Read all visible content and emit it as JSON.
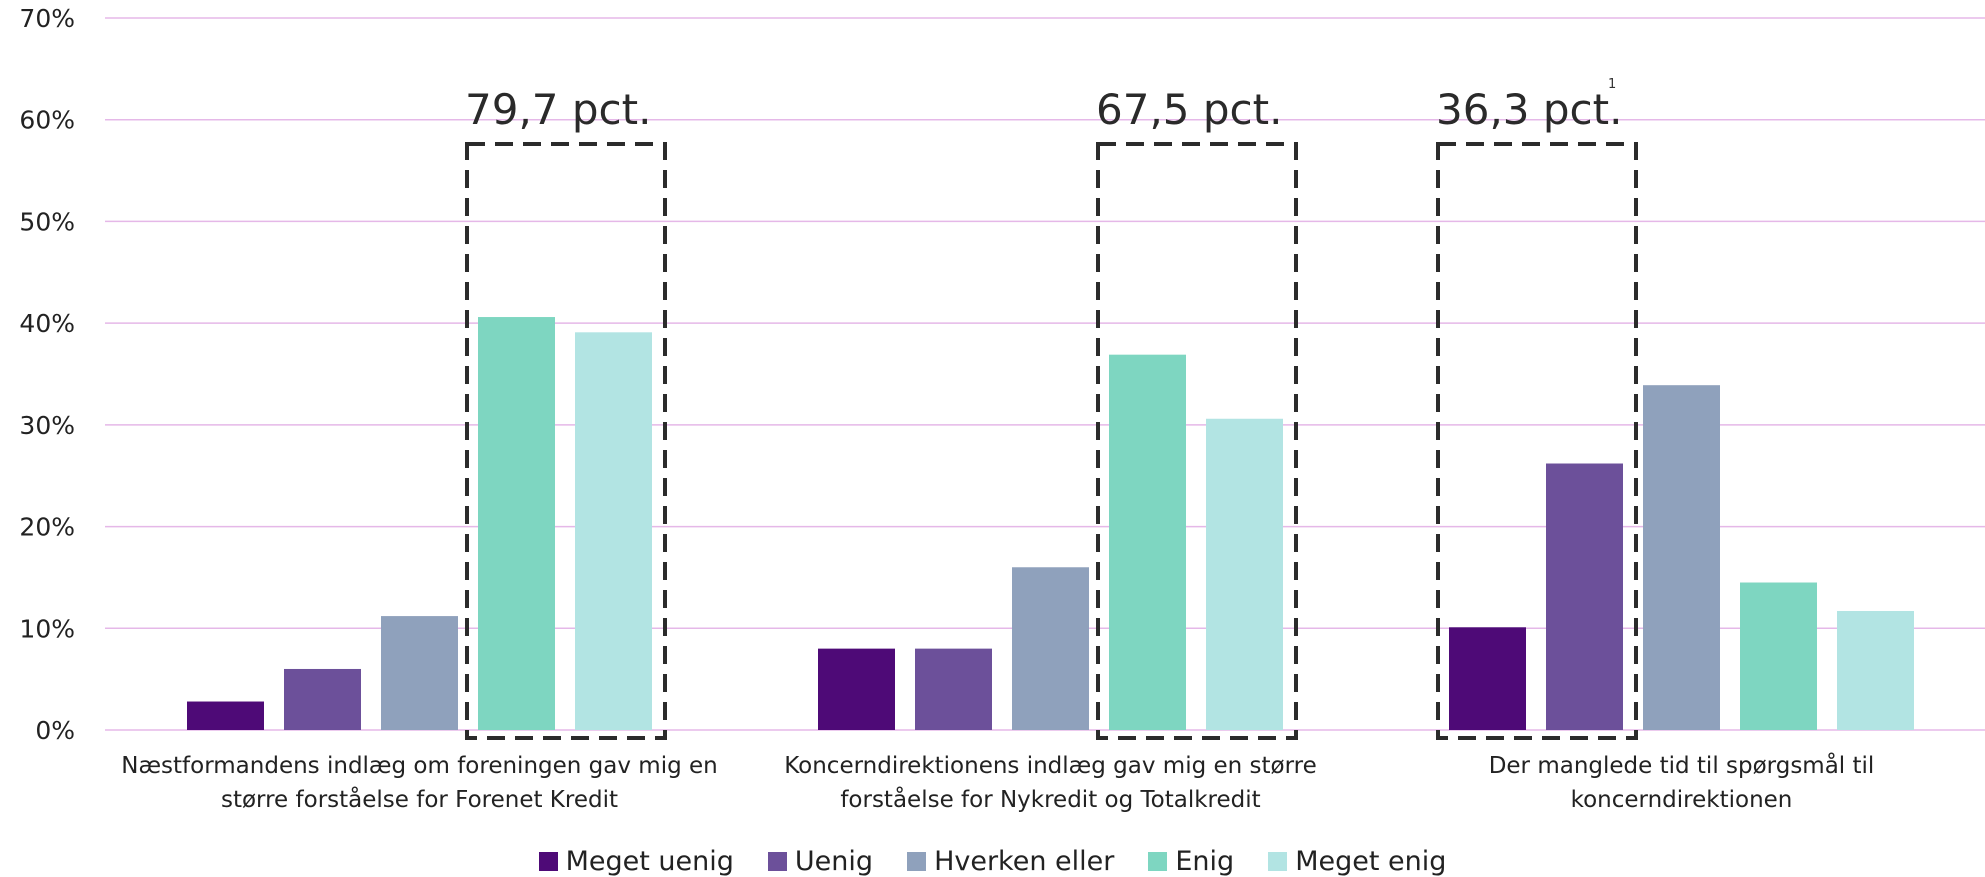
{
  "chart_data": {
    "type": "bar",
    "categories": [
      [
        "Næstformandens indlæg om foreningen gav mig en",
        "større forståelse for Forenet Kredit"
      ],
      [
        "Koncerndirektionens indlæg gav mig en større",
        "forståelse for Nykredit og Totalkredit"
      ],
      [
        "Der manglede tid til spørgsmål til",
        "koncerndirektionen"
      ]
    ],
    "series": [
      {
        "name": "Meget uenig",
        "color": "#4e0a77",
        "values": [
          2.8,
          8.0,
          10.1
        ]
      },
      {
        "name": "Uenig",
        "color": "#6c509a",
        "values": [
          6.0,
          8.0,
          26.2
        ]
      },
      {
        "name": "Hverken eller",
        "color": "#8fa1bc",
        "values": [
          11.2,
          16.0,
          33.9
        ]
      },
      {
        "name": "Enig",
        "color": "#7ed6c1",
        "values": [
          40.6,
          36.9,
          14.5
        ]
      },
      {
        "name": "Meget enig",
        "color": "#b2e4e3",
        "values": [
          39.1,
          30.6,
          11.7
        ]
      }
    ],
    "ylim": [
      0,
      70
    ],
    "yticks": [
      "0%",
      "10%",
      "20%",
      "30%",
      "40%",
      "50%",
      "60%",
      "70%"
    ],
    "gridlines": true,
    "grid_color": "#e5b8e8",
    "legend_position": "bottom",
    "annotations": [
      {
        "text": "79,7 pct.",
        "category": 0,
        "series": [
          3,
          4
        ]
      },
      {
        "text": "67,5 pct.",
        "category": 1,
        "series": [
          3,
          4
        ]
      },
      {
        "text": "36,3 pct.",
        "category": 2,
        "series": [
          0,
          1
        ],
        "footnote": "1"
      }
    ]
  }
}
